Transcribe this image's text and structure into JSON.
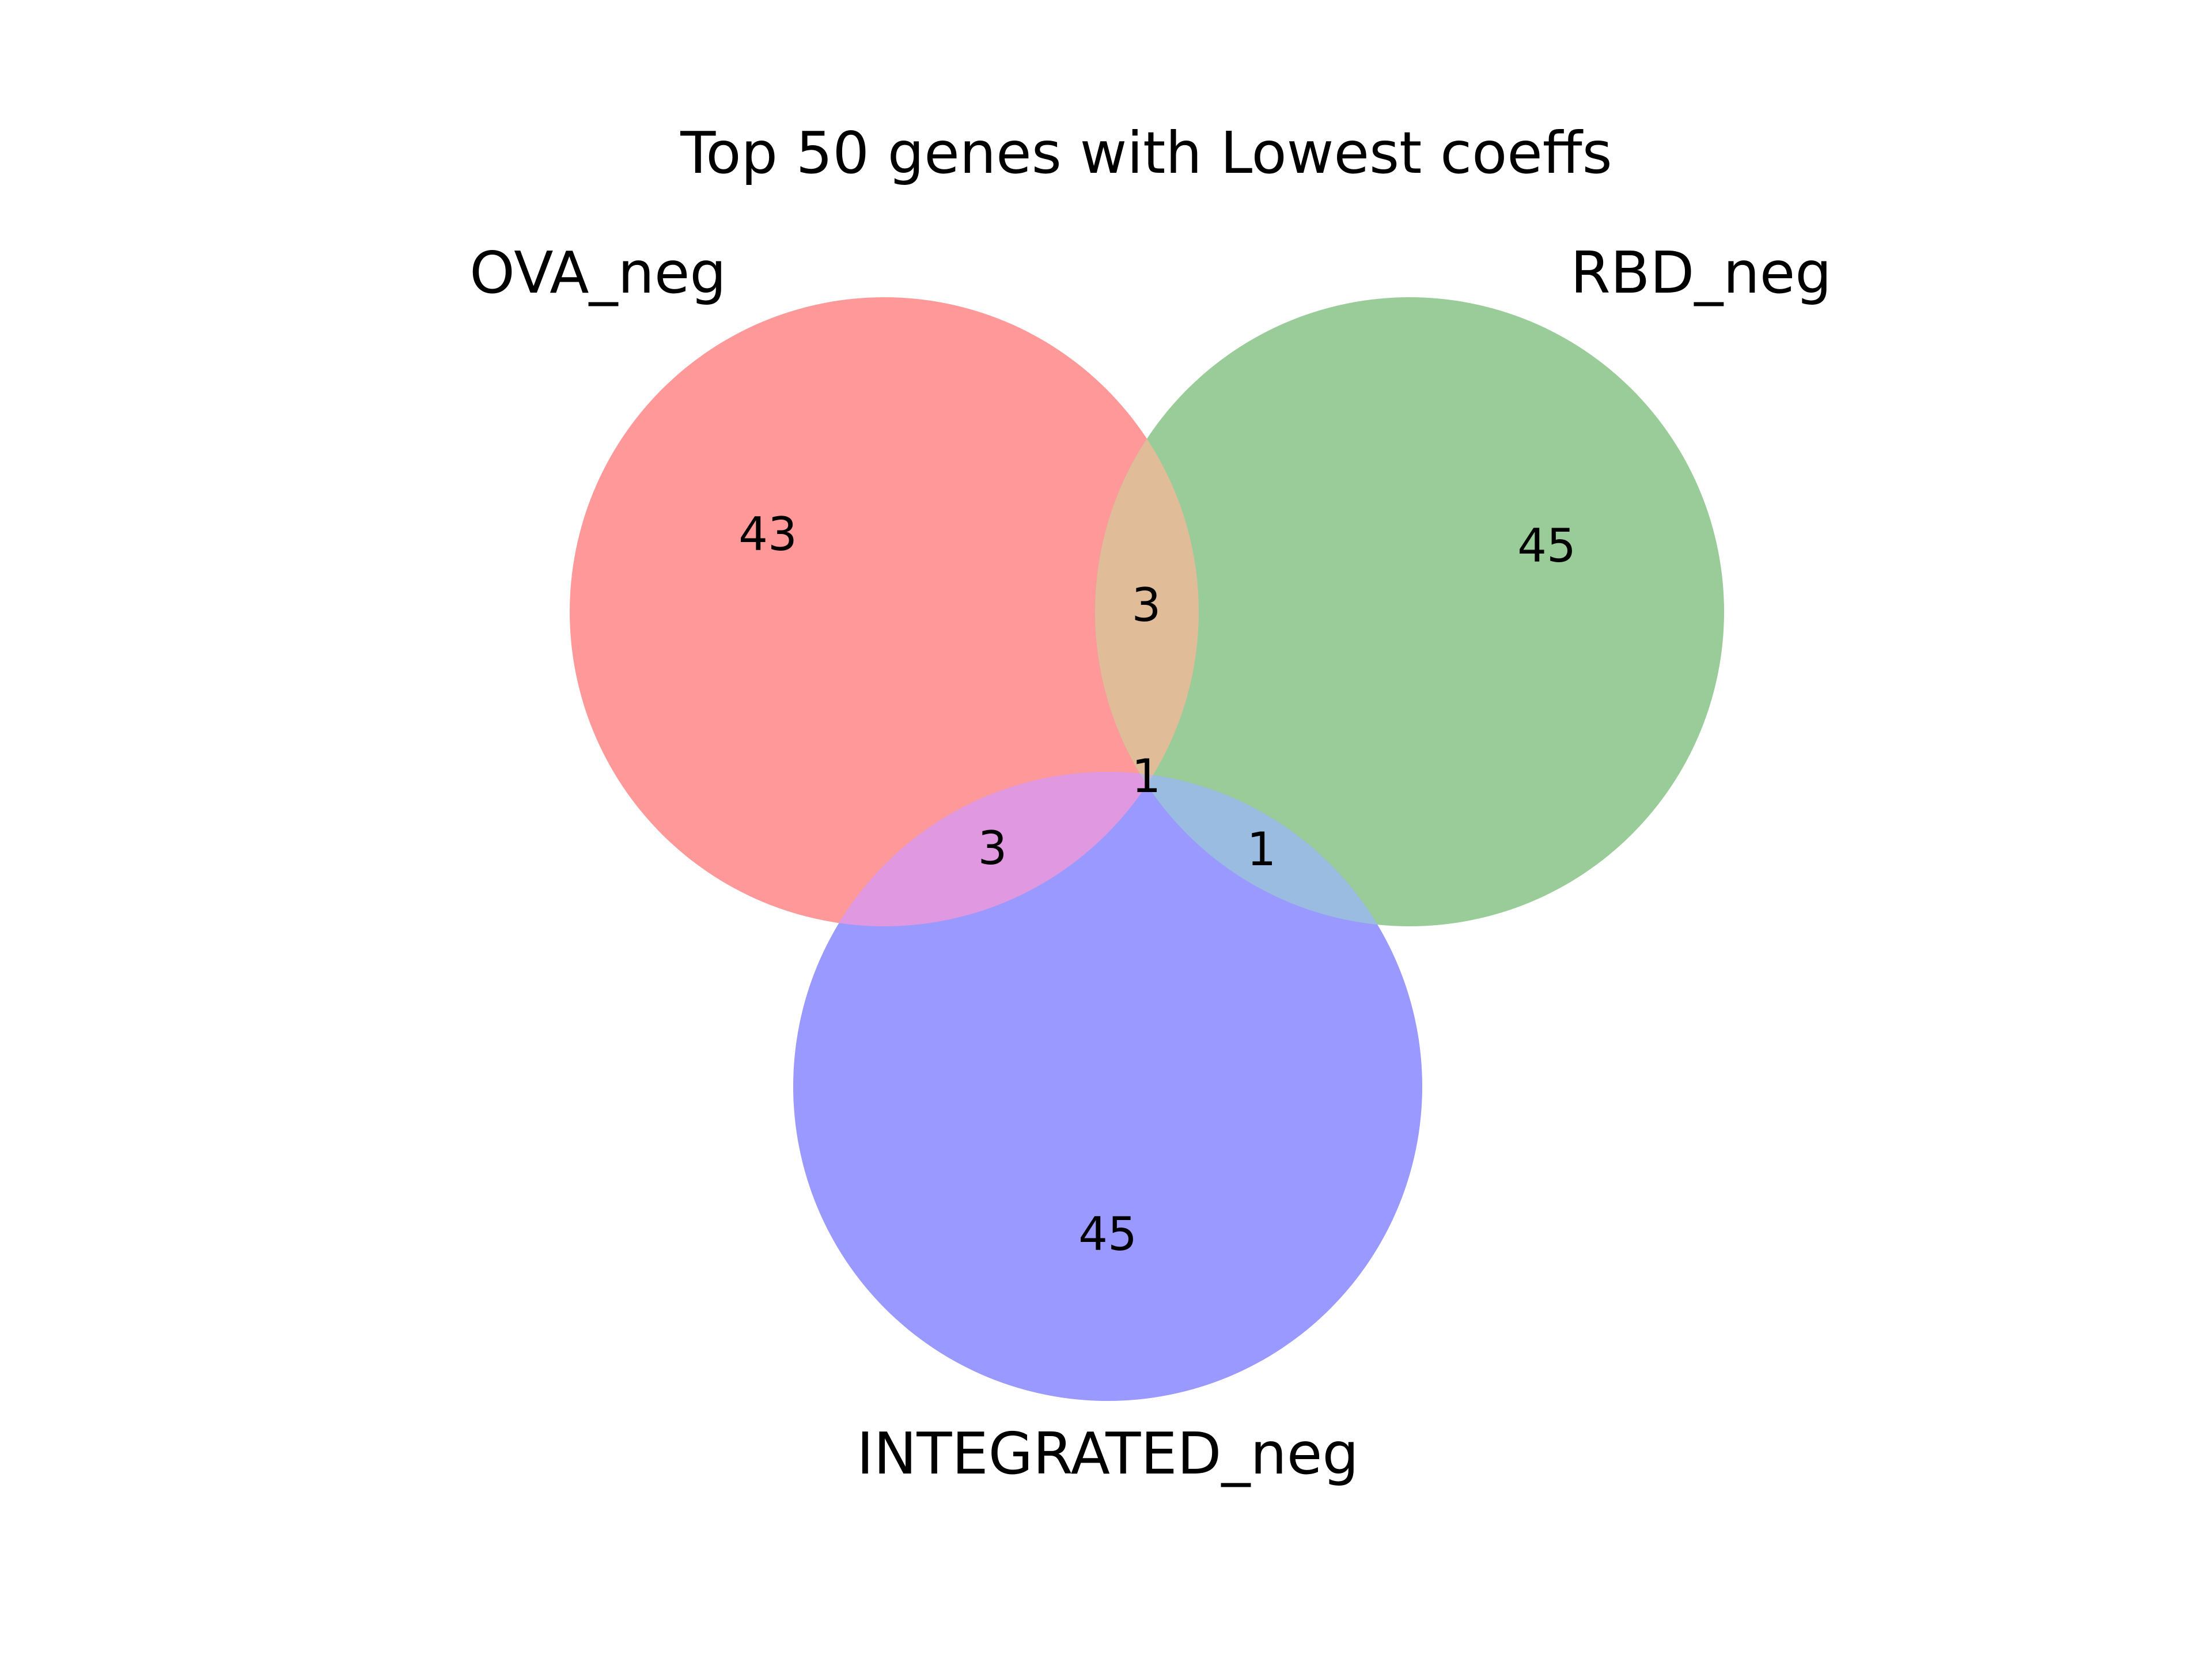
{
  "title": "Top 50 genes with Lowest coeffs",
  "sets": [
    {
      "key": "ova",
      "name": "OVA_neg",
      "color": "#ff9999"
    },
    {
      "key": "rbd",
      "name": "RBD_neg",
      "color": "#99cc99"
    },
    {
      "key": "integrated",
      "name": "INTEGRATED_neg",
      "color": "#9999ff"
    }
  ],
  "regions": {
    "ova_only": "43",
    "rbd_only": "45",
    "integrated_only": "45",
    "ova_rbd": "3",
    "ova_integrated": "3",
    "rbd_integrated": "1",
    "all_three": "1"
  },
  "region_colors": {
    "ova_rbd": "#e0bc99",
    "ova_integrated": "#e099e0",
    "rbd_integrated": "#99bce0",
    "all_three": "#c6b5d1"
  }
}
